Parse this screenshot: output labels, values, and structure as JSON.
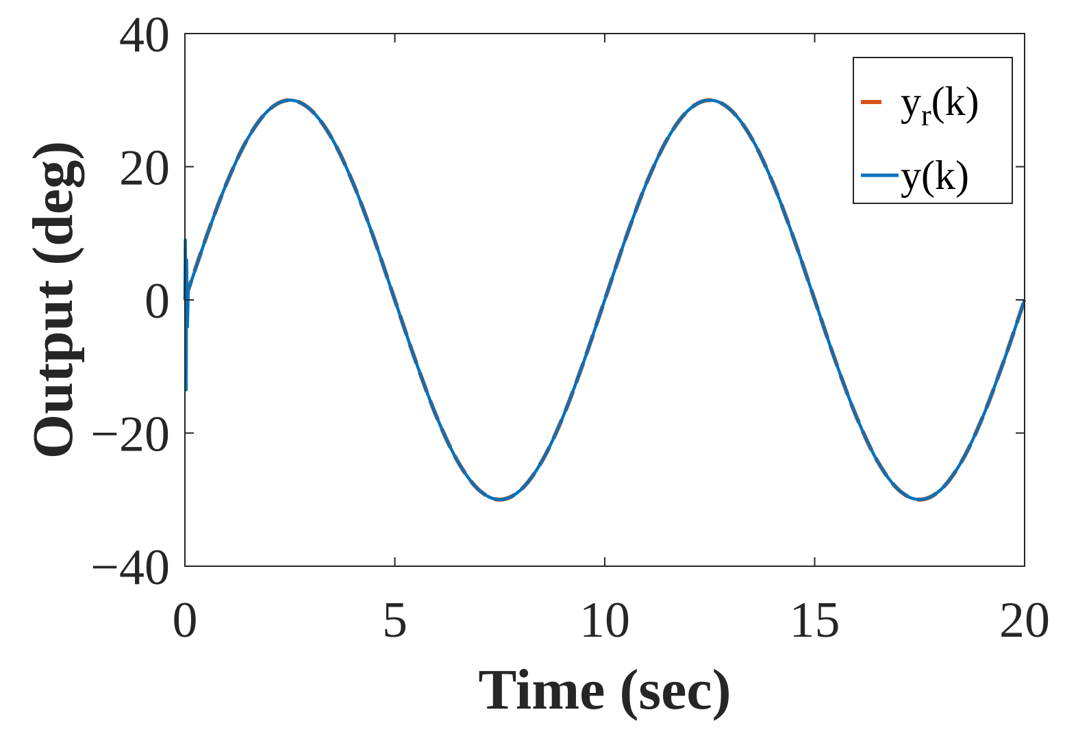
{
  "chart_data": {
    "type": "line",
    "xlabel": "Time (sec)",
    "ylabel": "Output (deg)",
    "xlim": [
      0,
      20
    ],
    "ylim": [
      -40,
      40
    ],
    "xticks": [
      0,
      5,
      10,
      15,
      20
    ],
    "yticks": [
      -40,
      -20,
      0,
      20,
      40
    ],
    "xtick_labels": [
      "0",
      "5",
      "10",
      "15",
      "20"
    ],
    "ytick_labels": [
      "−40",
      "−20",
      "0",
      "20",
      "40"
    ],
    "grid": false,
    "legend_position": "top-right",
    "series": [
      {
        "name_main": "y",
        "name_sub": "r",
        "name_suffix": "(k)",
        "style": "dashed",
        "color": "#D95319",
        "x": [
          0,
          0.5,
          1,
          1.5,
          2,
          2.5,
          3,
          3.5,
          4,
          4.5,
          5,
          5.5,
          6,
          6.5,
          7,
          7.5,
          8,
          8.5,
          9,
          9.5,
          10,
          10.5,
          11,
          11.5,
          12,
          12.5,
          13,
          13.5,
          14,
          14.5,
          15,
          15.5,
          16,
          16.5,
          17,
          17.5,
          18,
          18.5,
          19,
          19.5,
          20
        ],
        "y": [
          0,
          9.27,
          17.63,
          24.27,
          28.53,
          30,
          28.53,
          24.27,
          17.63,
          9.27,
          0,
          -9.27,
          -17.63,
          -24.27,
          -28.53,
          -30,
          -28.53,
          -24.27,
          -17.63,
          -9.27,
          0,
          9.27,
          17.63,
          24.27,
          28.53,
          30,
          28.53,
          24.27,
          17.63,
          9.27,
          0,
          -9.27,
          -17.63,
          -24.27,
          -28.53,
          -30,
          -28.53,
          -24.27,
          -17.63,
          -9.27,
          0
        ]
      },
      {
        "name_main": "y(k)",
        "style": "solid",
        "color": "#0072BD",
        "x": [
          0,
          0.01,
          0.02,
          0.03,
          0.04,
          0.06,
          0.08,
          0.12,
          0.5,
          1,
          1.5,
          2,
          2.5,
          3,
          3.5,
          4,
          4.5,
          5,
          5.5,
          6,
          6.5,
          7,
          7.5,
          8,
          8.5,
          9,
          9.5,
          10,
          10.5,
          11,
          11.5,
          12,
          12.5,
          13,
          13.5,
          14,
          14.5,
          15,
          15.5,
          16,
          16.5,
          17,
          17.5,
          18,
          18.5,
          19,
          19.5,
          20
        ],
        "y": [
          0,
          9,
          -1,
          -13.5,
          6,
          -4,
          1.5,
          2.2,
          9.27,
          17.63,
          24.27,
          28.53,
          30,
          28.53,
          24.27,
          17.63,
          9.27,
          0,
          -9.27,
          -17.63,
          -24.27,
          -28.53,
          -30,
          -28.53,
          -24.27,
          -17.63,
          -9.27,
          0,
          9.27,
          17.63,
          24.27,
          28.53,
          30,
          28.53,
          24.27,
          17.63,
          9.27,
          0,
          -9.27,
          -17.63,
          -24.27,
          -28.53,
          -30,
          -28.53,
          -24.27,
          -17.63,
          -9.27,
          0
        ]
      }
    ]
  }
}
